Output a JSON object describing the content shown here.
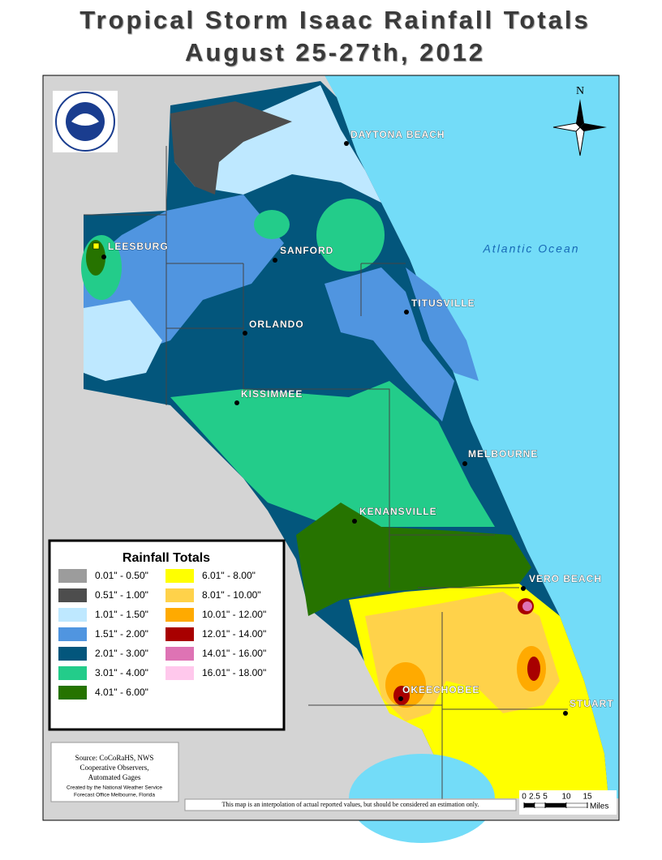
{
  "title": {
    "line1": "Tropical Storm Isaac Rainfall Totals",
    "line2": "August 25-27th, 2012"
  },
  "ocean_label": "Atlantic Ocean",
  "north_label": "N",
  "cities": [
    "DAYTONA BEACH",
    "SANFORD",
    "LEESBURG",
    "TITUSVILLE",
    "ORLANDO",
    "KISSIMMEE",
    "MELBOURNE",
    "KENANSVILLE",
    "VERO BEACH",
    "OKEECHOBEE",
    "STUART"
  ],
  "legend": {
    "title": "Rainfall Totals",
    "items": [
      {
        "label": "0.01\" - 0.50\"",
        "color": "#9c9c9c"
      },
      {
        "label": "0.51\" - 1.00\"",
        "color": "#4d4d4d"
      },
      {
        "label": "1.01\" - 1.50\"",
        "color": "#bee8ff"
      },
      {
        "label": "1.51\" - 2.00\"",
        "color": "#5095e0"
      },
      {
        "label": "2.01\" - 3.00\"",
        "color": "#03567c"
      },
      {
        "label": "3.01\" - 4.00\"",
        "color": "#23cc8a"
      },
      {
        "label": "4.01\" - 6.00\"",
        "color": "#267300"
      },
      {
        "label": "6.01\" - 8.00\"",
        "color": "#ffff00"
      },
      {
        "label": "8.01\" - 10.00\"",
        "color": "#ffd24a"
      },
      {
        "label": "10.01\" - 12.00\"",
        "color": "#ffaa00"
      },
      {
        "label": "12.01\" - 14.00\"",
        "color": "#a80000"
      },
      {
        "label": "14.01\" - 16.00\"",
        "color": "#de73b4"
      },
      {
        "label": "16.01\" - 18.00\"",
        "color": "#ffc8ec"
      }
    ]
  },
  "source": [
    "Source: CoCoRaHS, NWS",
    "Cooperative Observers,",
    "Automated Gages"
  ],
  "credit": [
    "Created by the National Weather Service",
    "Forecast Office Melbourne, Florida"
  ],
  "disclaimer": "This map is an interpolation of actual reported values, but should be considered an estimation only.",
  "scale": {
    "ticks": [
      0,
      2.5,
      5,
      10,
      15
    ],
    "unit": "Miles"
  }
}
